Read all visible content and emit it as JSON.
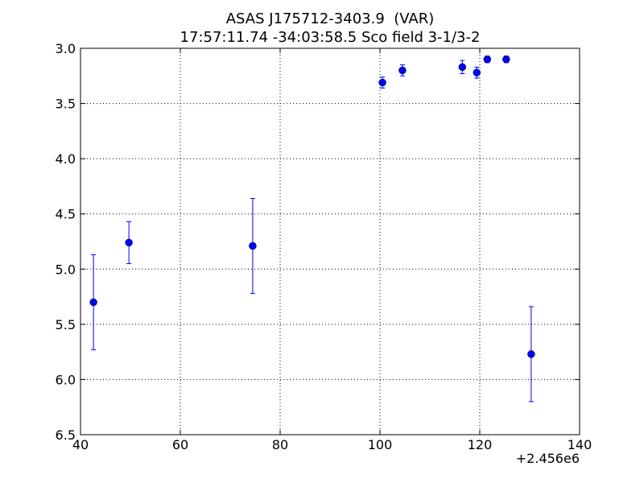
{
  "chart_data": {
    "type": "errorbar",
    "title": "ASAS J175712-3403.9  (VAR)",
    "subtitle": "17:57:11.74 -34:03:58.5 Sco field 3-1/3-2",
    "x_offset_label": "+2.456e6",
    "xlim": [
      40,
      140
    ],
    "xticks": [
      40,
      60,
      80,
      100,
      120,
      140
    ],
    "ylim": [
      6.5,
      3.0
    ],
    "yticks": [
      {
        "value": 3.0,
        "label": "3.0"
      },
      3.5,
      {
        "value": 4.0,
        "label": "4.0"
      },
      4.5,
      {
        "value": 5.0,
        "label": "5.0"
      },
      5.5,
      {
        "value": 6.0,
        "label": "6.0"
      },
      6.5
    ],
    "grid": true,
    "series": [
      {
        "color": "#0000ff",
        "x": [
          42.6,
          49.7,
          74.5,
          100.5,
          104.5,
          116.5,
          119.4,
          121.5,
          125.3,
          130.3
        ],
        "values": [
          5.3,
          4.76,
          4.79,
          3.31,
          3.2,
          3.17,
          3.22,
          3.1,
          3.1,
          5.77
        ],
        "errors": [
          0.43,
          0.19,
          0.43,
          0.05,
          0.05,
          0.06,
          0.05,
          0.03,
          0.03,
          0.43
        ]
      }
    ]
  }
}
